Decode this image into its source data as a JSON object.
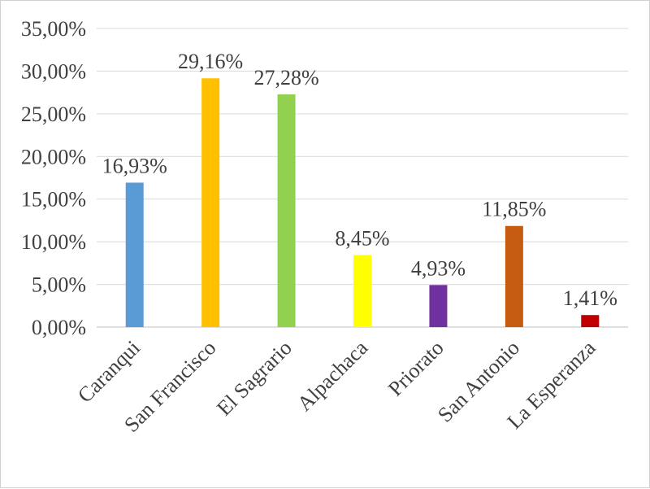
{
  "chart_data": {
    "type": "bar",
    "categories": [
      "Caranqui",
      "San Francisco",
      "El Sagrario",
      "Alpachaca",
      "Priorato",
      "San Antonio",
      "La Esperanza"
    ],
    "values": [
      16.93,
      29.16,
      27.28,
      8.45,
      4.93,
      11.85,
      1.41
    ],
    "data_labels": [
      "16,93%",
      "29,16%",
      "27,28%",
      "8,45%",
      "4,93%",
      "11,85%",
      "1,41%"
    ],
    "colors": [
      "#5B9BD5",
      "#FFC000",
      "#92D050",
      "#FFFF00",
      "#7030A0",
      "#C55A11",
      "#C00000"
    ],
    "y_ticks": [
      0,
      5,
      10,
      15,
      20,
      25,
      30,
      35
    ],
    "y_tick_labels": [
      "0,00%",
      "5,00%",
      "10,00%",
      "15,00%",
      "20,00%",
      "25,00%",
      "30,00%",
      "35,00%"
    ],
    "ylim": [
      0,
      35
    ],
    "grid": true,
    "legend": "none",
    "title": "",
    "xlabel": "",
    "ylabel": ""
  }
}
